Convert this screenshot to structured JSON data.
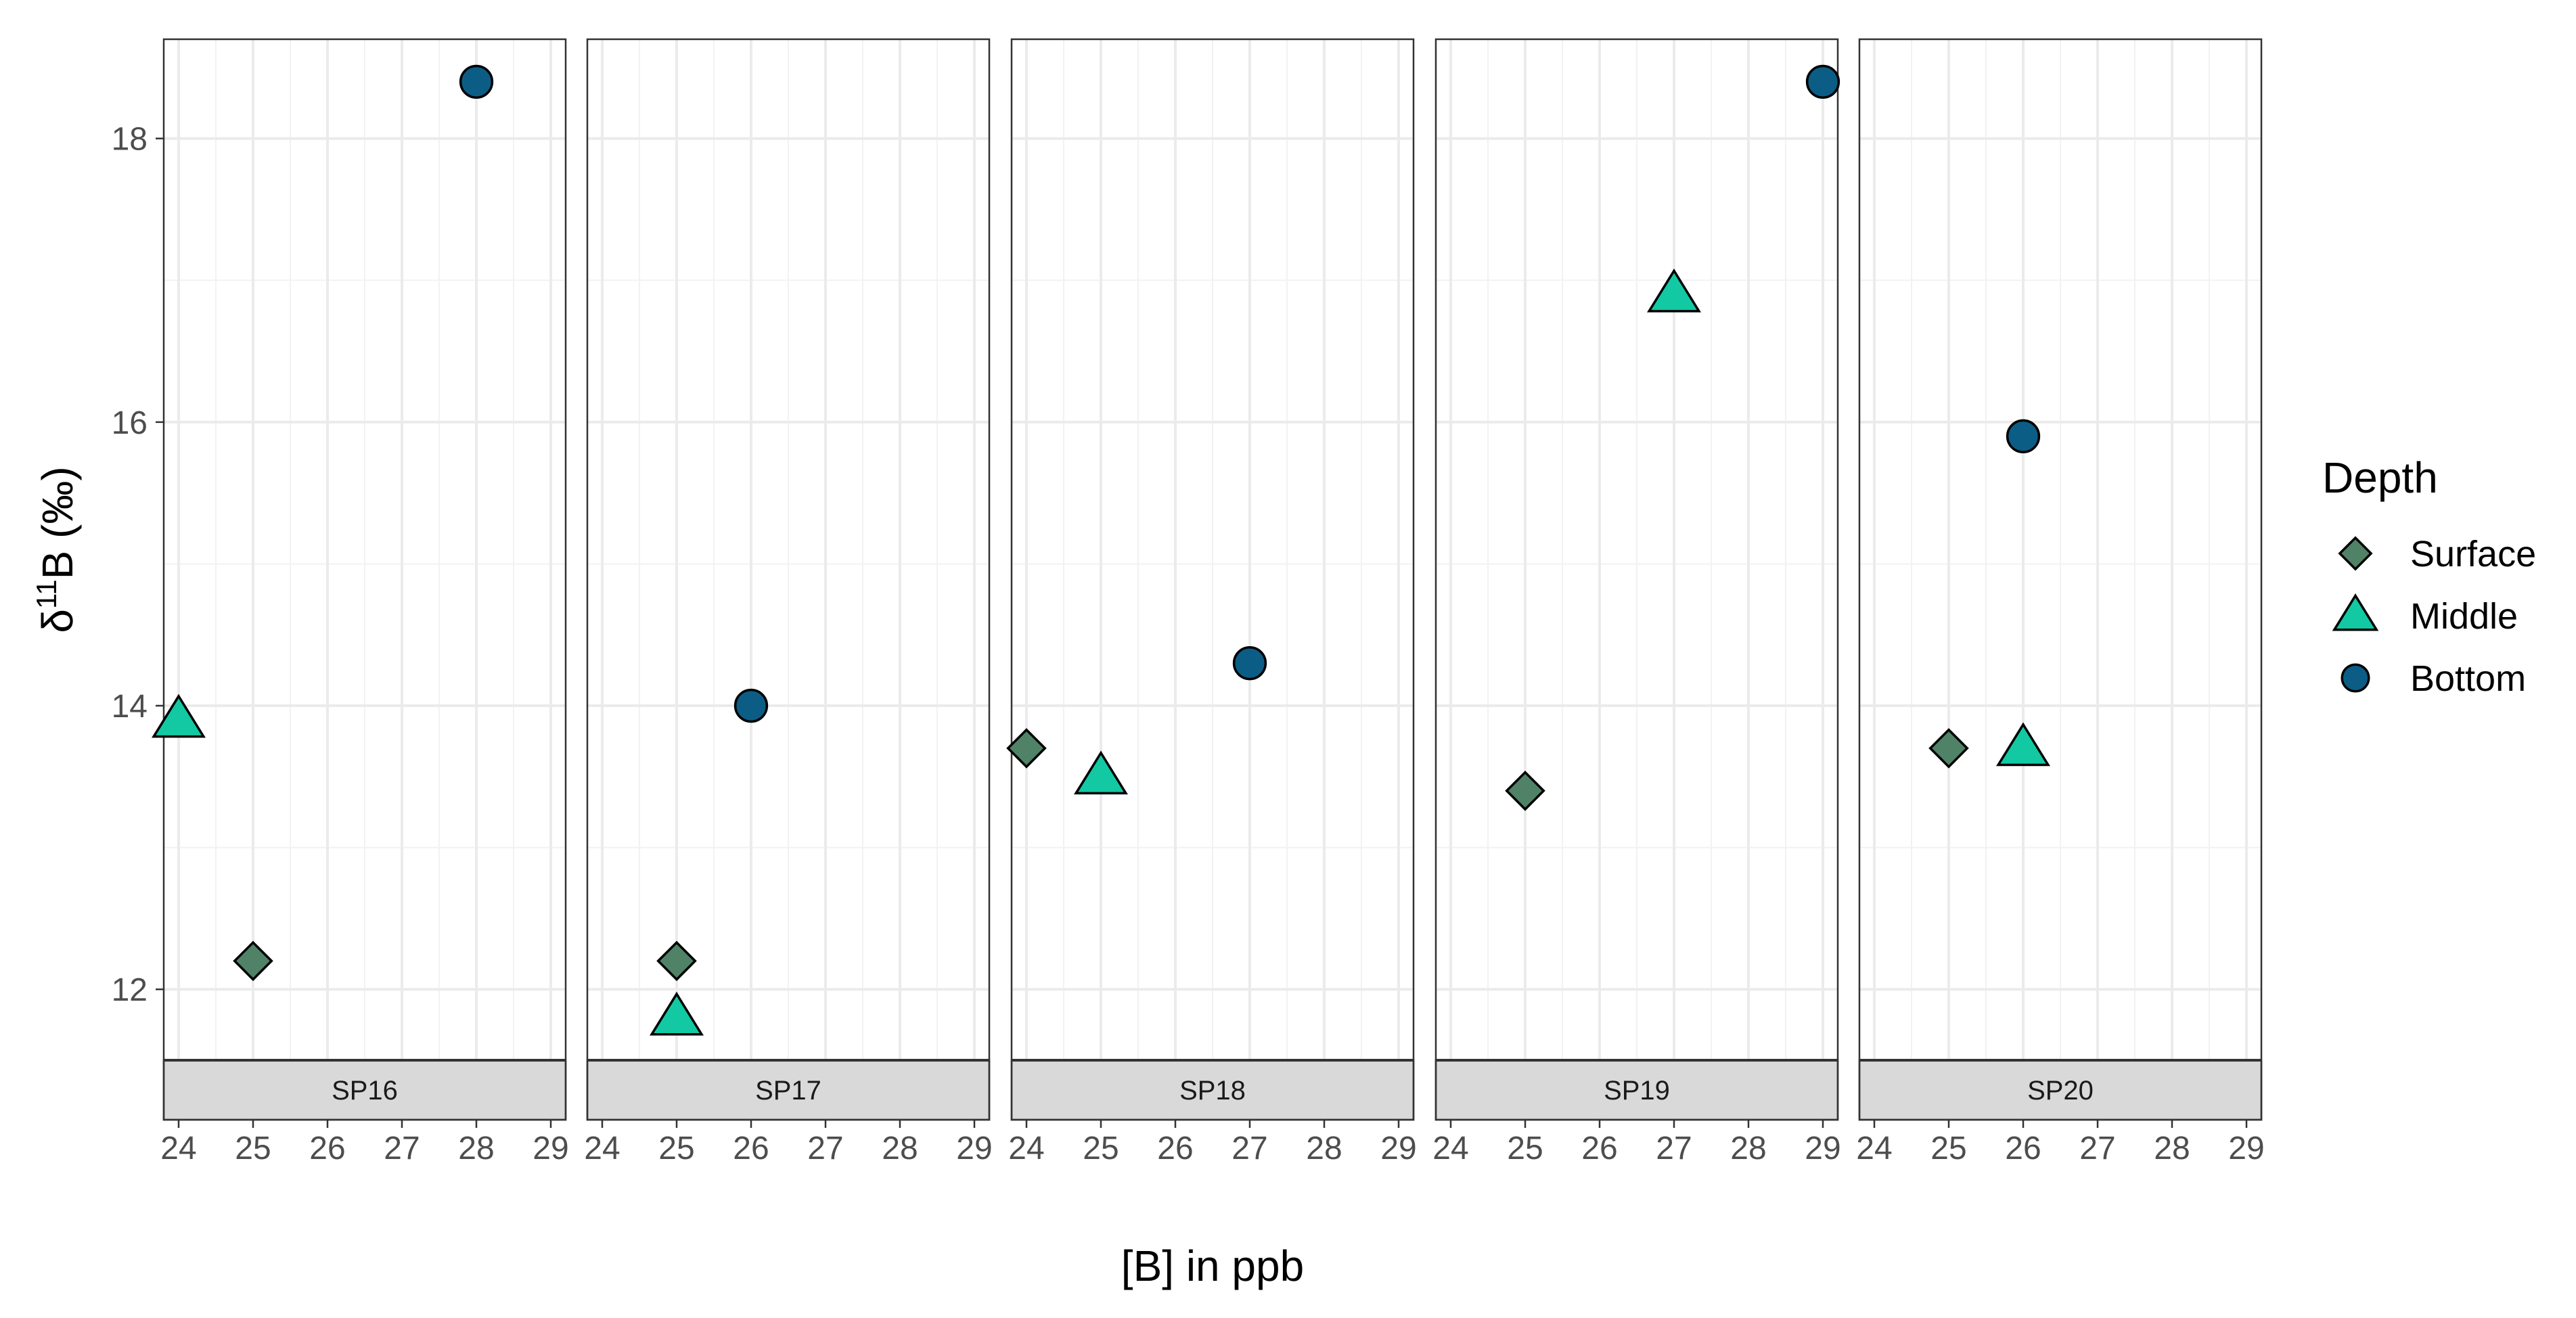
{
  "chart_data": {
    "type": "scatter",
    "xlabel": "[B] in ppb",
    "ylabel": {
      "prefix": "δ",
      "superscript": "11",
      "suffix": "B (‰)"
    },
    "xlim": [
      23.8,
      29.2
    ],
    "ylim": [
      11.5,
      18.7
    ],
    "x_ticks": [
      24,
      25,
      26,
      27,
      28,
      29
    ],
    "y_ticks": [
      12,
      14,
      16,
      18
    ],
    "grid": true,
    "legend": {
      "title": "Depth",
      "position": "right",
      "entries": [
        {
          "name": "Surface",
          "shape": "diamond",
          "color": "#4f8266"
        },
        {
          "name": "Middle",
          "shape": "triangle",
          "color": "#12c9a4"
        },
        {
          "name": "Bottom",
          "shape": "circle",
          "color": "#0b5d86"
        }
      ]
    },
    "panels": [
      {
        "label": "SP16",
        "points": [
          {
            "depth": "Surface",
            "x": 25,
            "y": 12.2
          },
          {
            "depth": "Middle",
            "x": 24,
            "y": 13.9
          },
          {
            "depth": "Bottom",
            "x": 28,
            "y": 18.4
          }
        ]
      },
      {
        "label": "SP17",
        "points": [
          {
            "depth": "Surface",
            "x": 25,
            "y": 12.2
          },
          {
            "depth": "Middle",
            "x": 25,
            "y": 11.8
          },
          {
            "depth": "Bottom",
            "x": 26,
            "y": 14.0
          }
        ]
      },
      {
        "label": "SP18",
        "points": [
          {
            "depth": "Surface",
            "x": 24,
            "y": 13.7
          },
          {
            "depth": "Middle",
            "x": 25,
            "y": 13.5
          },
          {
            "depth": "Bottom",
            "x": 27,
            "y": 14.3
          }
        ]
      },
      {
        "label": "SP19",
        "points": [
          {
            "depth": "Surface",
            "x": 25,
            "y": 13.4
          },
          {
            "depth": "Middle",
            "x": 27,
            "y": 16.9
          },
          {
            "depth": "Bottom",
            "x": 29,
            "y": 18.4
          }
        ]
      },
      {
        "label": "SP20",
        "points": [
          {
            "depth": "Surface",
            "x": 25,
            "y": 13.7
          },
          {
            "depth": "Middle",
            "x": 26,
            "y": 13.7
          },
          {
            "depth": "Bottom",
            "x": 26,
            "y": 15.9
          }
        ]
      }
    ]
  }
}
